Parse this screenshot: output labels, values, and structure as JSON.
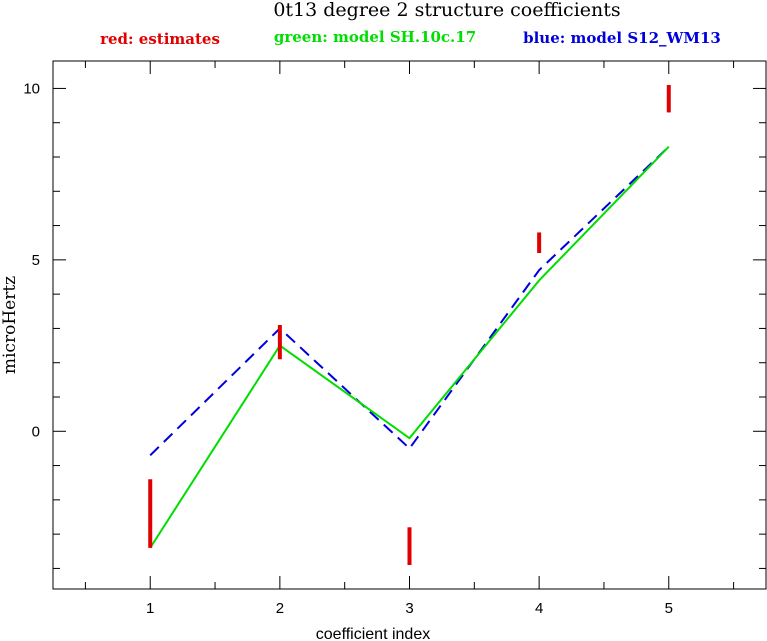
{
  "chart_data": {
    "type": "line",
    "title": "0t13 degree 2 structure coefficients",
    "legend": [
      {
        "label": "red: estimates",
        "color": "#e00000"
      },
      {
        "label": "green: model SH.10c.17",
        "color": "#00dd00"
      },
      {
        "label": "blue: model S12_WM13",
        "color": "#0000dd"
      }
    ],
    "xlabel": "coefficient index",
    "ylabel": "microHertz",
    "xlim": [
      0.25,
      5.75
    ],
    "ylim": [
      -4.6,
      10.8
    ],
    "x_ticks": [
      "1",
      "2",
      "3",
      "4",
      "5"
    ],
    "y_ticks": [
      "10",
      "5",
      "0"
    ],
    "x": [
      1,
      2,
      3,
      4,
      5
    ],
    "series": [
      {
        "name": "green: model SH.10c.17",
        "color": "#00dd00",
        "style": "solid",
        "values": [
          -3.4,
          2.5,
          -0.2,
          4.4,
          8.3
        ]
      },
      {
        "name": "blue: model S12_WM13",
        "color": "#0000dd",
        "style": "dashed",
        "values": [
          -0.7,
          3.0,
          -0.5,
          4.7,
          8.3
        ]
      }
    ],
    "error_bars": {
      "name": "red: estimates",
      "color": "#e00000",
      "low": [
        -3.4,
        2.1,
        -3.9,
        5.2,
        9.3
      ],
      "high": [
        -1.4,
        3.1,
        -2.8,
        5.8,
        10.1
      ]
    },
    "grid": false
  }
}
